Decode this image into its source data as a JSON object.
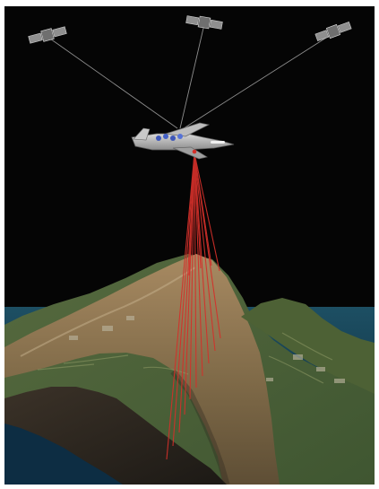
{
  "scene": {
    "background_color": "#050505",
    "frame_color": "#ffffff",
    "laser_color": "#d4302a",
    "link_color": "#9a9a9a",
    "satellites": [
      "satellite-icon",
      "satellite-icon",
      "satellite-icon"
    ],
    "aircraft": "survey-aircraft-icon",
    "terrain": "island-volcano-terrain",
    "ocean_color": "#12384e"
  }
}
